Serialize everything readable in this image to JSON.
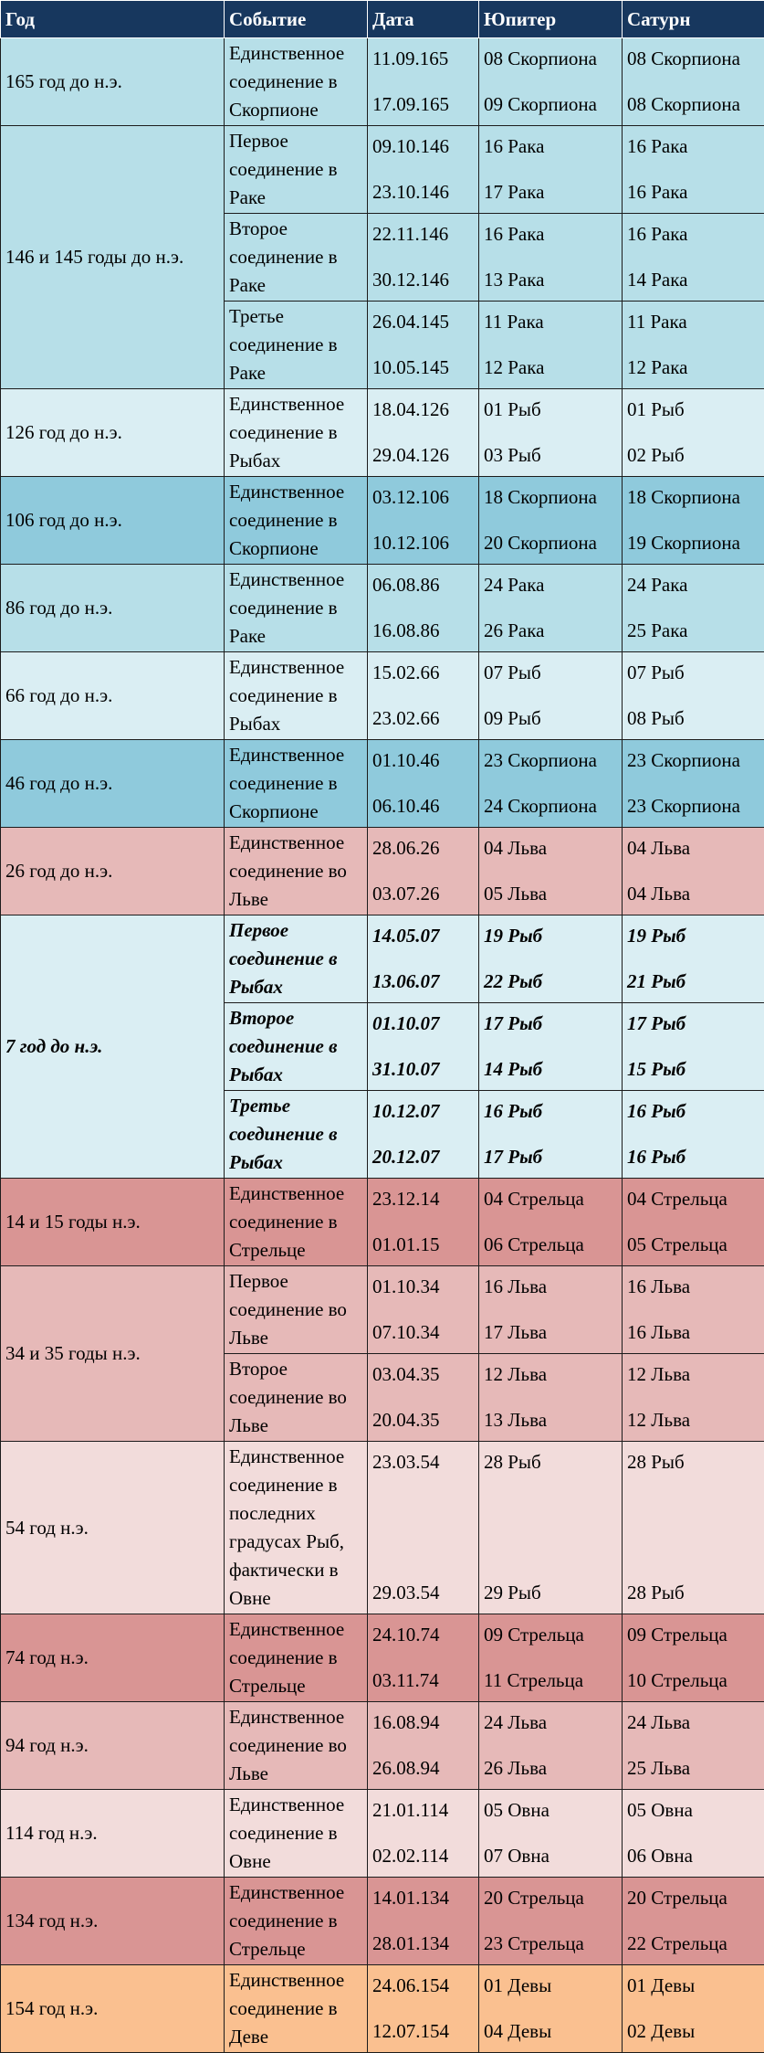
{
  "colors": {
    "header": "#17375e",
    "blue_dark": "#8fcadc",
    "blue_mid": "#b7dfe8",
    "blue_light": "#daeef3",
    "pink_dark": "#d99594",
    "pink_mid": "#e6b9b8",
    "pink_light": "#f2dcdb",
    "orange": "#fac090"
  },
  "header": {
    "year": "Год",
    "event": "Событие",
    "date": "Дата",
    "jupiter": "Юпитер",
    "saturn": "Сатурн"
  },
  "groups": [
    {
      "year": "165 год до н.э.",
      "color": "#b7dfe8",
      "rows": [
        {
          "event": "Единственное соединение в Скорпионе",
          "dates": [
            "11.09.165",
            "17.09.165"
          ],
          "jupiter": [
            "08 Скорпиона",
            "09 Скорпиона"
          ],
          "saturn": [
            "08 Скорпиона",
            "08 Скорпиона"
          ]
        }
      ]
    },
    {
      "year": "146 и 145 годы до н.э.",
      "color": "#b7dfe8",
      "rows": [
        {
          "event": "Первое соединение в Раке",
          "dates": [
            "09.10.146",
            "23.10.146"
          ],
          "jupiter": [
            "16 Рака",
            "17 Рака"
          ],
          "saturn": [
            "16 Рака",
            "16 Рака"
          ]
        },
        {
          "event": "Второе соединение в Раке",
          "dates": [
            "22.11.146",
            "30.12.146"
          ],
          "jupiter": [
            "16 Рака",
            "13 Рака"
          ],
          "saturn": [
            "16 Рака",
            "14 Рака"
          ]
        },
        {
          "event": "Третье соединение в Раке",
          "dates": [
            "26.04.145",
            "10.05.145"
          ],
          "jupiter": [
            "11 Рака",
            "12 Рака"
          ],
          "saturn": [
            "11 Рака",
            "12 Рака"
          ]
        }
      ]
    },
    {
      "year": "126 год до н.э.",
      "color": "#daeef3",
      "rows": [
        {
          "event": "Единственное соединение в Рыбах",
          "dates": [
            "18.04.126",
            "29.04.126"
          ],
          "jupiter": [
            "01 Рыб",
            "03 Рыб"
          ],
          "saturn": [
            "01 Рыб",
            "02 Рыб"
          ]
        }
      ]
    },
    {
      "year": "106 год до н.э.",
      "color": "#8fcadc",
      "rows": [
        {
          "event": "Единственное соединение в Скорпионе",
          "dates": [
            "03.12.106",
            "10.12.106"
          ],
          "jupiter": [
            "18 Скорпиона",
            "20 Скорпиона"
          ],
          "saturn": [
            "18 Скорпиона",
            "19 Скорпиона"
          ]
        }
      ]
    },
    {
      "year": "86 год до н.э.",
      "color": "#b7dfe8",
      "rows": [
        {
          "event": "Единственное соединение в Раке",
          "dates": [
            "06.08.86",
            "16.08.86"
          ],
          "jupiter": [
            "24 Рака",
            "26 Рака"
          ],
          "saturn": [
            "24 Рака",
            "25 Рака"
          ]
        }
      ]
    },
    {
      "year": "66 год до н.э.",
      "color": "#daeef3",
      "rows": [
        {
          "event": "Единственное соединение в Рыбах",
          "dates": [
            "15.02.66",
            "23.02.66"
          ],
          "jupiter": [
            "07 Рыб",
            "09 Рыб"
          ],
          "saturn": [
            "07 Рыб",
            "08 Рыб"
          ]
        }
      ]
    },
    {
      "year": "46 год до н.э.",
      "color": "#8fcadc",
      "rows": [
        {
          "event": "Единственное соединение в Скорпионе",
          "dates": [
            "01.10.46",
            "06.10.46"
          ],
          "jupiter": [
            "23 Скорпиона",
            "24 Скорпиона"
          ],
          "saturn": [
            "23 Скорпиона",
            "23 Скорпиона"
          ]
        }
      ]
    },
    {
      "year": "26 год до н.э.",
      "color": "#e6b9b8",
      "rows": [
        {
          "event": "Единственное соединение во Льве",
          "dates": [
            "28.06.26",
            "03.07.26"
          ],
          "jupiter": [
            "04 Льва",
            "05 Льва"
          ],
          "saturn": [
            "04 Льва",
            "04 Льва"
          ]
        }
      ]
    },
    {
      "year": "7 год до н.э.",
      "color": "#daeef3",
      "bold": true,
      "rows": [
        {
          "event": "Первое соединение в Рыбах",
          "dates": [
            "14.05.07",
            "13.06.07"
          ],
          "jupiter": [
            "19 Рыб",
            "22 Рыб"
          ],
          "saturn": [
            "19 Рыб",
            "21 Рыб"
          ]
        },
        {
          "event": "Второе соединение в Рыбах",
          "dates": [
            "01.10.07",
            "31.10.07"
          ],
          "jupiter": [
            "17 Рыб",
            "14 Рыб"
          ],
          "saturn": [
            "17 Рыб",
            "15 Рыб"
          ]
        },
        {
          "event": "Третье соединение в Рыбах",
          "dates": [
            "10.12.07",
            "20.12.07"
          ],
          "jupiter": [
            "16 Рыб",
            "17 Рыб"
          ],
          "saturn": [
            "16 Рыб",
            "16 Рыб"
          ]
        }
      ]
    },
    {
      "year": "14 и 15 годы н.э.",
      "color": "#d99594",
      "rows": [
        {
          "event": "Единственное соединение в Стрельце",
          "dates": [
            "23.12.14",
            "01.01.15"
          ],
          "jupiter": [
            "04 Стрельца",
            "06 Стрельца"
          ],
          "saturn": [
            "04 Стрельца",
            "05 Стрельца"
          ]
        }
      ]
    },
    {
      "year": "34 и 35 годы н.э.",
      "color": "#e6b9b8",
      "rows": [
        {
          "event": "Первое соединение во Льве",
          "dates": [
            "01.10.34",
            "07.10.34"
          ],
          "jupiter": [
            "16 Льва",
            "17 Льва"
          ],
          "saturn": [
            "16 Льва",
            "16 Льва"
          ]
        },
        {
          "event": "Второе соединение во Льве",
          "dates": [
            "03.04.35",
            "20.04.35"
          ],
          "jupiter": [
            "12 Льва",
            "13 Льва"
          ],
          "saturn": [
            "12 Льва",
            "12 Льва"
          ]
        }
      ]
    },
    {
      "year": "54 год н.э.",
      "color": "#f2dcdb",
      "rows": [
        {
          "event": "Единственное соединение в последних градусах Рыб, фактически в Овне",
          "dates": [
            "23.03.54",
            "29.03.54"
          ],
          "jupiter": [
            "28 Рыб",
            "29 Рыб"
          ],
          "saturn": [
            "28 Рыб",
            "28 Рыб"
          ]
        }
      ]
    },
    {
      "year": "74 год н.э.",
      "color": "#d99594",
      "rows": [
        {
          "event": "Единственное соединение в Стрельце",
          "dates": [
            "24.10.74",
            "03.11.74"
          ],
          "jupiter": [
            "09 Стрельца",
            "11 Стрельца"
          ],
          "saturn": [
            "09 Стрельца",
            "10 Стрельца"
          ]
        }
      ]
    },
    {
      "year": "94 год н.э.",
      "color": "#e6b9b8",
      "rows": [
        {
          "event": "Единственное соединение во Льве",
          "dates": [
            "16.08.94",
            "26.08.94"
          ],
          "jupiter": [
            "24 Льва",
            "26 Льва"
          ],
          "saturn": [
            "24 Льва",
            "25 Льва"
          ]
        }
      ]
    },
    {
      "year": "114 год н.э.",
      "color": "#f2dcdb",
      "rows": [
        {
          "event": "Единственное соединение в Овне",
          "dates": [
            "21.01.114",
            "02.02.114"
          ],
          "jupiter": [
            "05 Овна",
            "07 Овна"
          ],
          "saturn": [
            "05 Овна",
            "06 Овна"
          ]
        }
      ]
    },
    {
      "year": "134 год н.э.",
      "color": "#d99594",
      "rows": [
        {
          "event": "Единственное соединение в Стрельце",
          "dates": [
            "14.01.134",
            "28.01.134"
          ],
          "jupiter": [
            "20 Стрельца",
            "23 Стрельца"
          ],
          "saturn": [
            "20 Стрельца",
            "22 Стрельца"
          ]
        }
      ]
    },
    {
      "year": "154 год н.э.",
      "color": "#fac090",
      "rows": [
        {
          "event": "Единственное соединение в Деве",
          "dates": [
            "24.06.154",
            "12.07.154"
          ],
          "jupiter": [
            "01 Девы",
            "04 Девы"
          ],
          "saturn": [
            "01 Девы",
            "02 Девы"
          ]
        }
      ]
    }
  ]
}
